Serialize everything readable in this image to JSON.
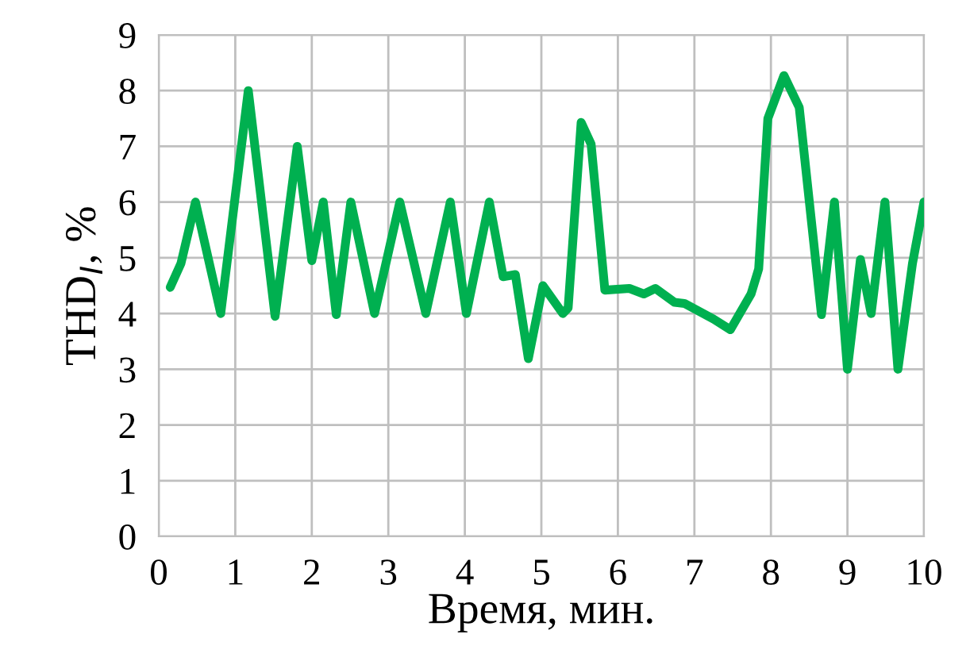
{
  "chart_data": {
    "type": "line",
    "xlabel": "Время, мин.",
    "ylabel": "THD$_{I}$, %",
    "xlim": [
      0,
      10
    ],
    "ylim": [
      0,
      9
    ],
    "xticks": [
      0,
      1,
      2,
      3,
      4,
      5,
      6,
      7,
      8,
      9,
      10
    ],
    "yticks": [
      0,
      1,
      2,
      3,
      4,
      5,
      6,
      7,
      8,
      9
    ],
    "grid": true,
    "marker": "none",
    "line_style": "solid",
    "series": [
      {
        "color": "#00b050",
        "x": [
          0.15,
          0.29,
          0.48,
          0.81,
          1.17,
          1.52,
          1.81,
          2.0,
          2.15,
          2.32,
          2.51,
          2.82,
          3.15,
          3.49,
          3.81,
          4.02,
          4.32,
          4.5,
          4.66,
          4.83,
          5.02,
          5.28,
          5.35,
          5.52,
          5.65,
          5.83,
          6.15,
          6.34,
          6.49,
          6.74,
          6.87,
          7.25,
          7.47,
          7.74,
          7.84,
          7.96,
          8.17,
          8.37,
          8.66,
          8.83,
          9.0,
          9.17,
          9.31,
          9.49,
          9.66,
          9.85,
          10.0
        ],
        "values": [
          4.47,
          4.9,
          6.0,
          4.0,
          8.0,
          3.95,
          7.0,
          4.95,
          6.0,
          3.98,
          6.0,
          4.0,
          6.0,
          4.0,
          6.0,
          4.0,
          6.0,
          4.66,
          4.7,
          3.19,
          4.5,
          4.0,
          4.1,
          7.43,
          7.04,
          4.42,
          4.45,
          4.35,
          4.45,
          4.2,
          4.18,
          3.9,
          3.71,
          4.35,
          4.8,
          7.5,
          8.27,
          7.7,
          3.98,
          6.0,
          3.0,
          4.97,
          4.0,
          6.0,
          3.0,
          4.9,
          6.0
        ]
      }
    ]
  }
}
